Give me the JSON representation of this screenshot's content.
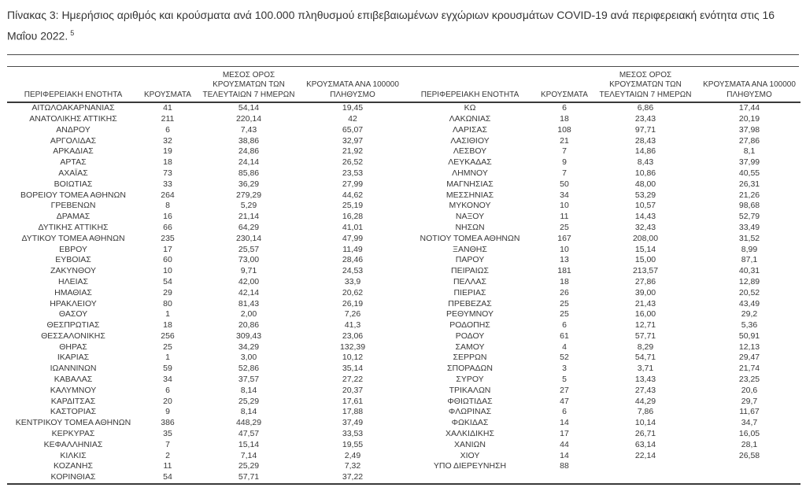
{
  "page": {
    "title": "Πίνακας 3:  Ημερήσιος αριθμός και κρούσματα ανά 100.000 πληθυσμού επιβεβαιωμένων εγχώριων κρουσμάτων COVID-19 ανά περιφερειακή ενότητα στις 16 Μαΐου 2022.",
    "footnote_marker": "5"
  },
  "colors": {
    "text": "#383838",
    "rule": "#4a4a4a",
    "header_border": "#3a3a3a",
    "background": "#ffffff"
  },
  "table": {
    "headers": [
      "ΠΕΡΙΦΕΡΕΙΑΚΗ ΕΝΟΤΗΤΑ",
      "ΚΡΟΥΣΜΑΤΑ",
      "ΜΕΣΟΣ ΟΡΟΣ ΚΡΟΥΣΜΑΤΩΝ ΤΩΝ ΤΕΛΕΥΤΑΙΩΝ 7 ΗΜΕΡΩΝ",
      "ΚΡΟΥΣΜΑΤΑ ΑΝΑ 100000 ΠΛΗΘΥΣΜΟ"
    ],
    "left_rows": [
      [
        "ΑΙΤΩΛΟΑΚΑΡΝΑΝΙΑΣ",
        "41",
        "54,14",
        "19,45"
      ],
      [
        "ΑΝΑΤΟΛΙΚΗΣ ΑΤΤΙΚΗΣ",
        "211",
        "220,14",
        "42"
      ],
      [
        "ΑΝΔΡΟΥ",
        "6",
        "7,43",
        "65,07"
      ],
      [
        "ΑΡΓΟΛΙΔΑΣ",
        "32",
        "38,86",
        "32,97"
      ],
      [
        "ΑΡΚΑΔΙΑΣ",
        "19",
        "24,86",
        "21,92"
      ],
      [
        "ΑΡΤΑΣ",
        "18",
        "24,14",
        "26,52"
      ],
      [
        "ΑΧΑΪΑΣ",
        "73",
        "85,86",
        "23,53"
      ],
      [
        "ΒΟΙΩΤΙΑΣ",
        "33",
        "36,29",
        "27,99"
      ],
      [
        "ΒΟΡΕΙΟΥ ΤΟΜΕΑ ΑΘΗΝΩΝ",
        "264",
        "279,29",
        "44,62"
      ],
      [
        "ΓΡΕΒΕΝΩΝ",
        "8",
        "5,29",
        "25,19"
      ],
      [
        "ΔΡΑΜΑΣ",
        "16",
        "21,14",
        "16,28"
      ],
      [
        "ΔΥΤΙΚΗΣ ΑΤΤΙΚΗΣ",
        "66",
        "64,29",
        "41,01"
      ],
      [
        "ΔΥΤΙΚΟΥ ΤΟΜΕΑ ΑΘΗΝΩΝ",
        "235",
        "230,14",
        "47,99"
      ],
      [
        "ΕΒΡΟΥ",
        "17",
        "25,57",
        "11,49"
      ],
      [
        "ΕΥΒΟΙΑΣ",
        "60",
        "73,00",
        "28,46"
      ],
      [
        "ΖΑΚΥΝΘΟΥ",
        "10",
        "9,71",
        "24,53"
      ],
      [
        "ΗΛΕΙΑΣ",
        "54",
        "42,00",
        "33,9"
      ],
      [
        "ΗΜΑΘΙΑΣ",
        "29",
        "42,14",
        "20,62"
      ],
      [
        "ΗΡΑΚΛΕΙΟΥ",
        "80",
        "81,43",
        "26,19"
      ],
      [
        "ΘΑΣΟΥ",
        "1",
        "2,00",
        "7,26"
      ],
      [
        "ΘΕΣΠΡΩΤΙΑΣ",
        "18",
        "20,86",
        "41,3"
      ],
      [
        "ΘΕΣΣΑΛΟΝΙΚΗΣ",
        "256",
        "309,43",
        "23,06"
      ],
      [
        "ΘΗΡΑΣ",
        "25",
        "34,29",
        "132,39"
      ],
      [
        "ΙΚΑΡΙΑΣ",
        "1",
        "3,00",
        "10,12"
      ],
      [
        "ΙΩΑΝΝΙΝΩΝ",
        "59",
        "52,86",
        "35,14"
      ],
      [
        "ΚΑΒΑΛΑΣ",
        "34",
        "37,57",
        "27,22"
      ],
      [
        "ΚΑΛΥΜΝΟΥ",
        "6",
        "8,14",
        "20,37"
      ],
      [
        "ΚΑΡΔΙΤΣΑΣ",
        "20",
        "25,29",
        "17,61"
      ],
      [
        "ΚΑΣΤΟΡΙΑΣ",
        "9",
        "8,14",
        "17,88"
      ],
      [
        "ΚΕΝΤΡΙΚΟΥ ΤΟΜΕΑ ΑΘΗΝΩΝ",
        "386",
        "448,29",
        "37,49"
      ],
      [
        "ΚΕΡΚΥΡΑΣ",
        "35",
        "47,57",
        "33,53"
      ],
      [
        "ΚΕΦΑΛΛΗΝΙΑΣ",
        "7",
        "15,14",
        "19,55"
      ],
      [
        "ΚΙΛΚΙΣ",
        "2",
        "7,14",
        "2,49"
      ],
      [
        "ΚΟΖΑΝΗΣ",
        "11",
        "25,29",
        "7,32"
      ],
      [
        "ΚΟΡΙΝΘΙΑΣ",
        "54",
        "57,71",
        "37,22"
      ]
    ],
    "right_rows": [
      [
        "ΚΩ",
        "6",
        "6,86",
        "17,44"
      ],
      [
        "ΛΑΚΩΝΙΑΣ",
        "18",
        "23,43",
        "20,19"
      ],
      [
        "ΛΑΡΙΣΑΣ",
        "108",
        "97,71",
        "37,98"
      ],
      [
        "ΛΑΣΙΘΙΟΥ",
        "21",
        "28,43",
        "27,86"
      ],
      [
        "ΛΕΣΒΟΥ",
        "7",
        "14,86",
        "8,1"
      ],
      [
        "ΛΕΥΚΑΔΑΣ",
        "9",
        "8,43",
        "37,99"
      ],
      [
        "ΛΗΜΝΟΥ",
        "7",
        "10,86",
        "40,55"
      ],
      [
        "ΜΑΓΝΗΣΙΑΣ",
        "50",
        "48,00",
        "26,31"
      ],
      [
        "ΜΕΣΣΗΝΙΑΣ",
        "34",
        "53,29",
        "21,26"
      ],
      [
        "ΜΥΚΟΝΟΥ",
        "10",
        "10,57",
        "98,68"
      ],
      [
        "ΝΑΞΟΥ",
        "11",
        "14,43",
        "52,79"
      ],
      [
        "ΝΗΣΩΝ",
        "25",
        "32,43",
        "33,49"
      ],
      [
        "ΝΟΤΙΟΥ ΤΟΜΕΑ ΑΘΗΝΩΝ",
        "167",
        "208,00",
        "31,52"
      ],
      [
        "ΞΑΝΘΗΣ",
        "10",
        "15,14",
        "8,99"
      ],
      [
        "ΠΑΡΟΥ",
        "13",
        "15,00",
        "87,1"
      ],
      [
        "ΠΕΙΡΑΙΩΣ",
        "181",
        "213,57",
        "40,31"
      ],
      [
        "ΠΕΛΛΑΣ",
        "18",
        "27,86",
        "12,89"
      ],
      [
        "ΠΙΕΡΙΑΣ",
        "26",
        "39,00",
        "20,52"
      ],
      [
        "ΠΡΕΒΕΖΑΣ",
        "25",
        "21,43",
        "43,49"
      ],
      [
        "ΡΕΘΥΜΝΟΥ",
        "25",
        "16,00",
        "29,2"
      ],
      [
        "ΡΟΔΟΠΗΣ",
        "6",
        "12,71",
        "5,36"
      ],
      [
        "ΡΟΔΟΥ",
        "61",
        "57,71",
        "50,91"
      ],
      [
        "ΣΑΜΟΥ",
        "4",
        "8,29",
        "12,13"
      ],
      [
        "ΣΕΡΡΩΝ",
        "52",
        "54,71",
        "29,47"
      ],
      [
        "ΣΠΟΡΑΔΩΝ",
        "3",
        "3,71",
        "21,74"
      ],
      [
        "ΣΥΡΟΥ",
        "5",
        "13,43",
        "23,25"
      ],
      [
        "ΤΡΙΚΑΛΩΝ",
        "27",
        "27,43",
        "20,6"
      ],
      [
        "ΦΘΙΩΤΙΔΑΣ",
        "47",
        "44,29",
        "29,7"
      ],
      [
        "ΦΛΩΡΙΝΑΣ",
        "6",
        "7,86",
        "11,67"
      ],
      [
        "ΦΩΚΙΔΑΣ",
        "14",
        "10,14",
        "34,7"
      ],
      [
        "ΧΑΛΚΙΔΙΚΗΣ",
        "17",
        "26,71",
        "16,05"
      ],
      [
        "ΧΑΝΙΩΝ",
        "44",
        "63,14",
        "28,1"
      ],
      [
        "ΧΙΟΥ",
        "14",
        "22,14",
        "26,58"
      ],
      [
        "ΥΠΟ ΔΙΕΡΕΥΝΗΣΗ",
        "88",
        "",
        ""
      ]
    ]
  }
}
